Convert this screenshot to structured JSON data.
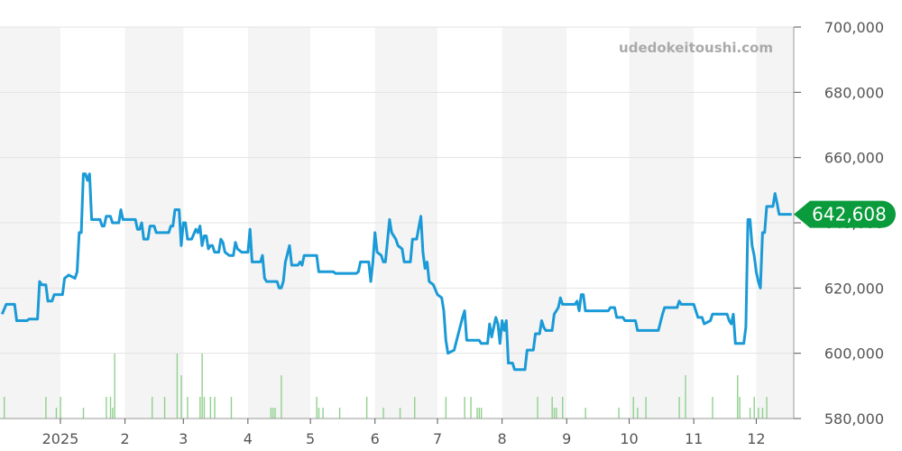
{
  "watermark": "udedokeitoushi.com",
  "current_price_label": "642,608",
  "colors": {
    "line": "#1a9ad6",
    "volume": "#8fd18f",
    "band": "#f4f4f4",
    "badge": "#0a9b3c",
    "grid": "#e3e3e3"
  },
  "chart_data": {
    "type": "line",
    "title": "",
    "xlabel": "",
    "ylabel": "",
    "ylim": [
      580000,
      700000
    ],
    "y_ticks": [
      "700,000",
      "680,000",
      "660,000",
      "640,000",
      "620,000",
      "600,000",
      "580,000"
    ],
    "x_ticks": [
      {
        "label": "2025",
        "date": "2025-01"
      },
      {
        "label": "2",
        "date": "2025-02"
      },
      {
        "label": "3",
        "date": "2025-03"
      },
      {
        "label": "4",
        "date": "2025-04"
      },
      {
        "label": "5",
        "date": "2025-05"
      },
      {
        "label": "6",
        "date": "2025-06"
      },
      {
        "label": "7",
        "date": "2025-07"
      },
      {
        "label": "8",
        "date": "2025-08"
      },
      {
        "label": "9",
        "date": "2025-09"
      },
      {
        "label": "10",
        "date": "2025-10"
      },
      {
        "label": "11",
        "date": "2025-11"
      },
      {
        "label": "12",
        "date": "2025-12"
      }
    ],
    "grid": true,
    "series": [
      {
        "type": "line",
        "points": [
          [
            "2024-12-04",
            612000
          ],
          [
            "2024-12-06",
            615000
          ],
          [
            "2024-12-10",
            615000
          ],
          [
            "2024-12-11",
            610000
          ],
          [
            "2024-12-16",
            610000
          ],
          [
            "2024-12-17",
            610500
          ],
          [
            "2024-12-21",
            610500
          ],
          [
            "2024-12-22",
            622000
          ],
          [
            "2024-12-23",
            621000
          ],
          [
            "2024-12-25",
            621000
          ],
          [
            "2024-12-26",
            616000
          ],
          [
            "2024-12-28",
            616000
          ],
          [
            "2024-12-29",
            618000
          ],
          [
            "2025-01-02",
            618000
          ],
          [
            "2025-01-03",
            623000
          ],
          [
            "2025-01-05",
            624000
          ],
          [
            "2025-01-08",
            623000
          ],
          [
            "2025-01-09",
            625000
          ],
          [
            "2025-01-10",
            637000
          ],
          [
            "2025-01-11",
            637000
          ],
          [
            "2025-01-12",
            655000
          ],
          [
            "2025-01-13",
            655000
          ],
          [
            "2025-01-14",
            653000
          ],
          [
            "2025-01-15",
            655000
          ],
          [
            "2025-01-16",
            641000
          ],
          [
            "2025-01-20",
            641000
          ],
          [
            "2025-01-21",
            639000
          ],
          [
            "2025-01-22",
            639000
          ],
          [
            "2025-01-23",
            642000
          ],
          [
            "2025-01-25",
            642000
          ],
          [
            "2025-01-26",
            640000
          ],
          [
            "2025-01-29",
            640000
          ],
          [
            "2025-01-30",
            644000
          ],
          [
            "2025-01-31",
            641000
          ],
          [
            "2025-02-06",
            641000
          ],
          [
            "2025-02-07",
            638000
          ],
          [
            "2025-02-08",
            638000
          ],
          [
            "2025-02-09",
            640000
          ],
          [
            "2025-02-10",
            635000
          ],
          [
            "2025-02-12",
            635000
          ],
          [
            "2025-02-13",
            639000
          ],
          [
            "2025-02-15",
            639000
          ],
          [
            "2025-02-16",
            637000
          ],
          [
            "2025-02-22",
            637000
          ],
          [
            "2025-02-23",
            639000
          ],
          [
            "2025-02-24",
            639000
          ],
          [
            "2025-02-25",
            644000
          ],
          [
            "2025-02-27",
            644000
          ],
          [
            "2025-02-28",
            633000
          ],
          [
            "2025-03-01",
            640000
          ],
          [
            "2025-03-02",
            640000
          ],
          [
            "2025-03-03",
            635000
          ],
          [
            "2025-03-05",
            635000
          ],
          [
            "2025-03-07",
            638000
          ],
          [
            "2025-03-08",
            637000
          ],
          [
            "2025-03-09",
            639000
          ],
          [
            "2025-03-10",
            633000
          ],
          [
            "2025-03-11",
            636000
          ],
          [
            "2025-03-12",
            636000
          ],
          [
            "2025-03-13",
            632000
          ],
          [
            "2025-03-14",
            633000
          ],
          [
            "2025-03-15",
            633000
          ],
          [
            "2025-03-16",
            631000
          ],
          [
            "2025-03-18",
            631000
          ],
          [
            "2025-03-19",
            635000
          ],
          [
            "2025-03-20",
            634000
          ],
          [
            "2025-03-21",
            631000
          ],
          [
            "2025-03-23",
            630000
          ],
          [
            "2025-03-25",
            630000
          ],
          [
            "2025-03-26",
            634000
          ],
          [
            "2025-03-27",
            632000
          ],
          [
            "2025-03-29",
            631000
          ],
          [
            "2025-04-01",
            631000
          ],
          [
            "2025-04-02",
            638000
          ],
          [
            "2025-04-03",
            628000
          ],
          [
            "2025-04-07",
            628000
          ],
          [
            "2025-04-08",
            630000
          ],
          [
            "2025-04-09",
            623000
          ],
          [
            "2025-04-10",
            622000
          ],
          [
            "2025-04-15",
            622000
          ],
          [
            "2025-04-16",
            620000
          ],
          [
            "2025-04-17",
            620000
          ],
          [
            "2025-04-18",
            622000
          ],
          [
            "2025-04-19",
            628000
          ],
          [
            "2025-04-21",
            633000
          ],
          [
            "2025-04-22",
            627000
          ],
          [
            "2025-04-25",
            627000
          ],
          [
            "2025-04-26",
            628000
          ],
          [
            "2025-04-27",
            627000
          ],
          [
            "2025-04-28",
            630000
          ],
          [
            "2025-05-04",
            630000
          ],
          [
            "2025-05-05",
            625000
          ],
          [
            "2025-05-12",
            625000
          ],
          [
            "2025-05-13",
            624500
          ],
          [
            "2025-05-23",
            624500
          ],
          [
            "2025-05-24",
            625000
          ],
          [
            "2025-05-25",
            628000
          ],
          [
            "2025-05-29",
            628000
          ],
          [
            "2025-05-30",
            622000
          ],
          [
            "2025-05-31",
            628000
          ],
          [
            "2025-06-01",
            637000
          ],
          [
            "2025-06-02",
            631000
          ],
          [
            "2025-06-04",
            630000
          ],
          [
            "2025-06-05",
            628000
          ],
          [
            "2025-06-06",
            628000
          ],
          [
            "2025-06-08",
            641000
          ],
          [
            "2025-06-09",
            637000
          ],
          [
            "2025-06-11",
            635000
          ],
          [
            "2025-06-12",
            633000
          ],
          [
            "2025-06-14",
            632000
          ],
          [
            "2025-06-15",
            628000
          ],
          [
            "2025-06-18",
            628000
          ],
          [
            "2025-06-19",
            635000
          ],
          [
            "2025-06-21",
            635000
          ],
          [
            "2025-06-23",
            642000
          ],
          [
            "2025-06-24",
            631000
          ],
          [
            "2025-06-25",
            626000
          ],
          [
            "2025-06-26",
            628000
          ],
          [
            "2025-06-27",
            622000
          ],
          [
            "2025-06-29",
            621000
          ],
          [
            "2025-07-01",
            618000
          ],
          [
            "2025-07-03",
            617000
          ],
          [
            "2025-07-04",
            613000
          ],
          [
            "2025-07-05",
            604000
          ],
          [
            "2025-07-06",
            600000
          ],
          [
            "2025-07-09",
            601000
          ],
          [
            "2025-07-13",
            611000
          ],
          [
            "2025-07-14",
            613000
          ],
          [
            "2025-07-15",
            604000
          ],
          [
            "2025-07-21",
            604000
          ],
          [
            "2025-07-22",
            603000
          ],
          [
            "2025-07-25",
            603000
          ],
          [
            "2025-07-26",
            609000
          ],
          [
            "2025-07-27",
            605000
          ],
          [
            "2025-07-28",
            608000
          ],
          [
            "2025-07-29",
            611000
          ],
          [
            "2025-07-30",
            609000
          ],
          [
            "2025-07-31",
            603000
          ],
          [
            "2025-08-01",
            610000
          ],
          [
            "2025-08-02",
            607000
          ],
          [
            "2025-08-03",
            610000
          ],
          [
            "2025-08-04",
            597000
          ],
          [
            "2025-08-06",
            597000
          ],
          [
            "2025-08-07",
            595000
          ],
          [
            "2025-08-12",
            595000
          ],
          [
            "2025-08-13",
            601000
          ],
          [
            "2025-08-16",
            601000
          ],
          [
            "2025-08-17",
            606000
          ],
          [
            "2025-08-19",
            606000
          ],
          [
            "2025-08-20",
            610000
          ],
          [
            "2025-08-21",
            608000
          ],
          [
            "2025-08-22",
            607000
          ],
          [
            "2025-08-25",
            607000
          ],
          [
            "2025-08-26",
            612000
          ],
          [
            "2025-08-28",
            614000
          ],
          [
            "2025-08-29",
            617000
          ],
          [
            "2025-08-30",
            615000
          ],
          [
            "2025-09-05",
            615000
          ],
          [
            "2025-09-06",
            616000
          ],
          [
            "2025-09-07",
            613000
          ],
          [
            "2025-09-08",
            618000
          ],
          [
            "2025-09-09",
            618000
          ],
          [
            "2025-09-10",
            613000
          ],
          [
            "2025-09-21",
            613000
          ],
          [
            "2025-09-22",
            614000
          ],
          [
            "2025-09-24",
            614000
          ],
          [
            "2025-09-25",
            611000
          ],
          [
            "2025-09-28",
            611000
          ],
          [
            "2025-09-29",
            610000
          ],
          [
            "2025-10-04",
            610000
          ],
          [
            "2025-10-05",
            607000
          ],
          [
            "2025-10-15",
            607000
          ],
          [
            "2025-10-17",
            612000
          ],
          [
            "2025-10-18",
            614000
          ],
          [
            "2025-10-24",
            614000
          ],
          [
            "2025-10-25",
            616000
          ],
          [
            "2025-10-26",
            615000
          ],
          [
            "2025-11-01",
            615000
          ],
          [
            "2025-11-03",
            611000
          ],
          [
            "2025-11-05",
            611000
          ],
          [
            "2025-11-06",
            609000
          ],
          [
            "2025-11-09",
            610000
          ],
          [
            "2025-11-10",
            612000
          ],
          [
            "2025-11-17",
            612000
          ],
          [
            "2025-11-18",
            610000
          ],
          [
            "2025-11-19",
            609000
          ],
          [
            "2025-11-20",
            612000
          ],
          [
            "2025-11-21",
            603000
          ],
          [
            "2025-11-25",
            603000
          ],
          [
            "2025-11-26",
            608000
          ],
          [
            "2025-11-27",
            641000
          ],
          [
            "2025-11-28",
            641000
          ],
          [
            "2025-11-29",
            633000
          ],
          [
            "2025-11-30",
            630000
          ],
          [
            "2025-12-01",
            625000
          ],
          [
            "2025-12-02",
            622000
          ],
          [
            "2025-12-03",
            620000
          ],
          [
            "2025-12-04",
            637000
          ],
          [
            "2025-12-05",
            637000
          ],
          [
            "2025-12-06",
            645000
          ],
          [
            "2025-12-09",
            645000
          ],
          [
            "2025-12-10",
            649000
          ],
          [
            "2025-12-11",
            646000
          ],
          [
            "2025-12-12",
            642608
          ],
          [
            "2025-12-18",
            642608
          ]
        ]
      },
      {
        "type": "bar",
        "bars": [
          [
            "2024-12-05",
            2
          ],
          [
            "2024-12-25",
            2
          ],
          [
            "2024-12-30",
            1
          ],
          [
            "2025-01-01",
            2
          ],
          [
            "2025-01-12",
            1
          ],
          [
            "2025-01-23",
            2
          ],
          [
            "2025-01-25",
            2
          ],
          [
            "2025-01-26",
            1
          ],
          [
            "2025-01-27",
            6
          ],
          [
            "2025-02-14",
            2
          ],
          [
            "2025-02-20",
            2
          ],
          [
            "2025-02-26",
            6
          ],
          [
            "2025-02-28",
            4
          ],
          [
            "2025-03-03",
            2
          ],
          [
            "2025-03-09",
            2
          ],
          [
            "2025-03-10",
            6
          ],
          [
            "2025-03-11",
            2
          ],
          [
            "2025-03-14",
            2
          ],
          [
            "2025-03-16",
            2
          ],
          [
            "2025-03-24",
            2
          ],
          [
            "2025-04-12",
            1
          ],
          [
            "2025-04-13",
            1
          ],
          [
            "2025-04-14",
            1
          ],
          [
            "2025-04-17",
            4
          ],
          [
            "2025-05-04",
            2
          ],
          [
            "2025-05-05",
            1
          ],
          [
            "2025-05-07",
            1
          ],
          [
            "2025-05-15",
            1
          ],
          [
            "2025-05-28",
            2
          ],
          [
            "2025-06-05",
            1
          ],
          [
            "2025-06-13",
            1
          ],
          [
            "2025-06-20",
            2
          ],
          [
            "2025-07-05",
            2
          ],
          [
            "2025-07-14",
            2
          ],
          [
            "2025-07-17",
            2
          ],
          [
            "2025-07-20",
            1
          ],
          [
            "2025-07-21",
            1
          ],
          [
            "2025-07-22",
            1
          ],
          [
            "2025-08-18",
            2
          ],
          [
            "2025-08-25",
            2
          ],
          [
            "2025-08-26",
            1
          ],
          [
            "2025-08-27",
            1
          ],
          [
            "2025-08-30",
            2
          ],
          [
            "2025-09-10",
            1
          ],
          [
            "2025-09-26",
            1
          ],
          [
            "2025-10-03",
            2
          ],
          [
            "2025-10-05",
            1
          ],
          [
            "2025-10-09",
            2
          ],
          [
            "2025-10-25",
            2
          ],
          [
            "2025-10-28",
            4
          ],
          [
            "2025-11-10",
            2
          ],
          [
            "2025-11-22",
            4
          ],
          [
            "2025-11-23",
            2
          ],
          [
            "2025-11-28",
            1
          ],
          [
            "2025-11-30",
            2
          ],
          [
            "2025-12-02",
            1
          ],
          [
            "2025-12-04",
            1
          ],
          [
            "2025-12-06",
            2
          ]
        ]
      }
    ]
  }
}
